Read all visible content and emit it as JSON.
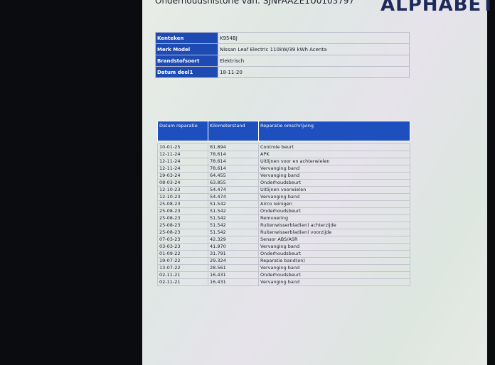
{
  "header": {
    "title": "Onderhoudshistorie van: SJNFAAZE1U0103797",
    "logo": "ALPHABET"
  },
  "vehicle": [
    {
      "label": "Kenteken",
      "value": "K954BJ"
    },
    {
      "label": "Merk Model",
      "value": "Nissan Leaf Electric 110kW/39 kWh Acenta"
    },
    {
      "label": "Brandstofsoort",
      "value": "Elektrisch"
    },
    {
      "label": "Datum deel1",
      "value": "18-11-20"
    }
  ],
  "repairs": {
    "columns": [
      "Datum reparatie",
      "Kilometerstand",
      "Reparatie omschrijving"
    ],
    "rows": [
      [
        "10-01-25",
        "81.894",
        "Controle beurt"
      ],
      [
        "12-11-24",
        "78.614",
        "APK"
      ],
      [
        "12-11-24",
        "78.614",
        "Uitlijnen voor en achterwielen"
      ],
      [
        "12-11-24",
        "78.614",
        "Vervanging band"
      ],
      [
        "19-03-24",
        "64.455",
        "Vervanging band"
      ],
      [
        "08-03-24",
        "63.855",
        "Onderhoudsbeurt"
      ],
      [
        "12-10-23",
        "54.474",
        "Uitlijnen voorwielen"
      ],
      [
        "12-10-23",
        "54.474",
        "Vervanging band"
      ],
      [
        "25-08-23",
        "51.542",
        "Airco reinigen"
      ],
      [
        "25-08-23",
        "51.542",
        "Onderhoudsbeurt"
      ],
      [
        "25-08-23",
        "51.542",
        "Remvoering"
      ],
      [
        "25-08-23",
        "51.542",
        "Ruitenwisserblad(en) achterzijde"
      ],
      [
        "25-08-23",
        "51.542",
        "Ruitenwisserblad(en) voorzijde"
      ],
      [
        "07-03-23",
        "42.329",
        "Sensor ABS/ASR"
      ],
      [
        "03-03-23",
        "41.970",
        "Vervanging band"
      ],
      [
        "01-09-22",
        "31.791",
        "Onderhoudsbeurt"
      ],
      [
        "19-07-22",
        "29.324",
        "Reparatie band(en)"
      ],
      [
        "13-07-22",
        "28.561",
        "Vervanging band"
      ],
      [
        "02-11-21",
        "16.431",
        "Onderhoudsbeurt"
      ],
      [
        "02-11-21",
        "16.431",
        "Vervanging band"
      ]
    ]
  }
}
